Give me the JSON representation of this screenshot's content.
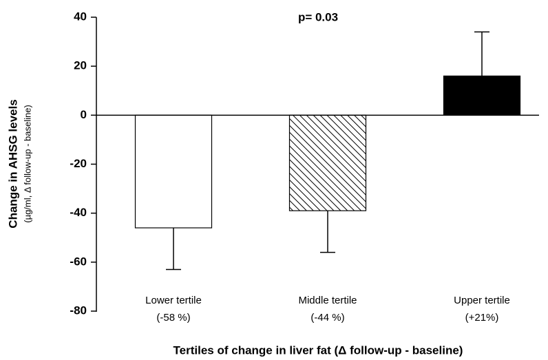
{
  "chart_data": {
    "type": "bar",
    "annotation": "p= 0.03",
    "y_label": "Change in AHSG levels",
    "y_sublabel": "(µg/ml, Δ follow-up - baseline)",
    "x_label": "Tertiles of change in liver fat (Δ follow-up - baseline)",
    "categories": [
      "Lower tertile",
      "Middle tertile",
      "Upper tertile"
    ],
    "category_notes": [
      "(-58 %)",
      "(-44 %)",
      "(+21%)"
    ],
    "values": [
      -46,
      -39,
      16
    ],
    "errors": [
      17,
      17,
      18
    ],
    "bar_styles": [
      "open",
      "hatched",
      "solid"
    ],
    "color": "#000000",
    "ylim": [
      -80,
      40
    ],
    "yticks": [
      -80,
      -60,
      -40,
      -20,
      0,
      20,
      40
    ],
    "grid": false
  }
}
